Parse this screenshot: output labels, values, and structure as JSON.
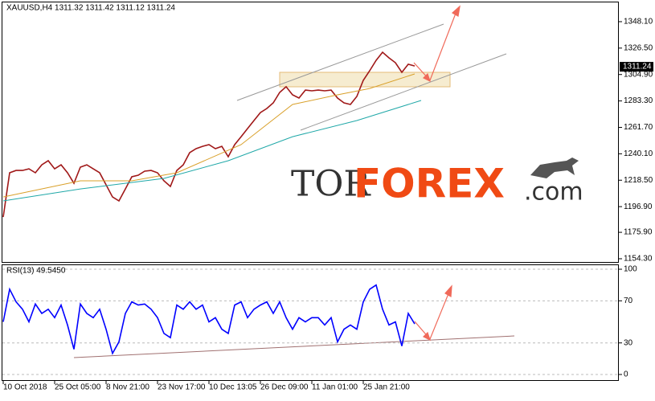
{
  "chart_data": [
    {
      "type": "line",
      "title": "XAUUSD,H4  1311.32 1311.42 1311.12 1311.24",
      "xlim": [
        -0.5,
        95.75
      ],
      "ylim": [
        1151.0,
        1364.5
      ],
      "yticks": [
        {
          "value": 1348.1,
          "label": "1348.10"
        },
        {
          "value": 1326.5,
          "label": "1326.50"
        },
        {
          "value": 1304.9,
          "label": "1304.90"
        },
        {
          "value": 1283.3,
          "label": "1283.30"
        },
        {
          "value": 1261.7,
          "label": "1261.70"
        },
        {
          "value": 1240.1,
          "label": "1240.10"
        },
        {
          "value": 1218.5,
          "label": "1218.50"
        },
        {
          "value": 1196.9,
          "label": "1196.90"
        },
        {
          "value": 1175.9,
          "label": "1175.90"
        },
        {
          "value": 1154.3,
          "label": "1154.30"
        }
      ],
      "last_price": 1311.24,
      "series": [
        {
          "color": "#a01818",
          "values": [
            1188.4,
            1224.6,
            1226.5,
            1226.5,
            1227.8,
            1224.6,
            1231.1,
            1234.4,
            1227.8,
            1231.1,
            1224.6,
            1216.0,
            1229.2,
            1231.1,
            1227.8,
            1224.6,
            1214.7,
            1204.8,
            1201.6,
            1211.4,
            1221.3,
            1222.6,
            1225.9,
            1226.5,
            1224.6,
            1218.0,
            1213.4,
            1226.5,
            1231.1,
            1241.0,
            1244.3,
            1246.2,
            1247.6,
            1244.3,
            1246.2,
            1237.7,
            1247.6,
            1254.1,
            1260.7,
            1267.3,
            1273.8,
            1277.1,
            1281.7,
            1290.3,
            1294.9,
            1288.3,
            1285.7,
            1292.2,
            1291.6,
            1292.2,
            1291.6,
            1292.2,
            1285.7,
            1281.7,
            1280.4,
            1287.0,
            1300.1,
            1308.0,
            1316.5,
            1323.1,
            1318.5,
            1314.6,
            1306.7,
            1313.3,
            1311.9
          ]
        },
        {
          "color": "#d9a02a",
          "x": [
            0,
            12,
            20,
            27,
            37,
            45,
            52,
            57,
            64
          ],
          "values": [
            1204.8,
            1218.0,
            1218.0,
            1224.6,
            1247.6,
            1280.4,
            1288.3,
            1293.5,
            1305.4
          ]
        },
        {
          "color": "#20a8a8",
          "x": [
            0,
            12,
            25,
            35,
            45,
            55,
            65
          ],
          "values": [
            1201.6,
            1211.4,
            1220.0,
            1234.4,
            1254.1,
            1267.3,
            1283.7
          ]
        }
      ]
    },
    {
      "type": "line",
      "title": "RSI(13) 49.5450",
      "xlim": [
        -0.5,
        95.75
      ],
      "ylim": [
        -6.1,
        104.6
      ],
      "yticks": [
        100,
        70,
        30,
        0
      ],
      "xticks": [
        {
          "value": 0,
          "label": "10 Oct 2018"
        },
        {
          "value": 8,
          "label": "25 Oct 05:00"
        },
        {
          "value": 16,
          "label": "8 Nov 21:00"
        },
        {
          "value": 24,
          "label": "23 Nov 17:00"
        },
        {
          "value": 32,
          "label": "10 Dec 13:05"
        },
        {
          "value": 40,
          "label": "26 Dec 09:00"
        },
        {
          "value": 48,
          "label": "11 Jan 01:00"
        },
        {
          "value": 56,
          "label": "25 Jan 21:00"
        }
      ],
      "series": [
        {
          "color": "#0000ff",
          "values": [
            50,
            81,
            69,
            62,
            50,
            67,
            58,
            62,
            54,
            66,
            47,
            24,
            67,
            58,
            54,
            62,
            43,
            20,
            31,
            58,
            69,
            66,
            67,
            62,
            54,
            39,
            35,
            66,
            62,
            69,
            62,
            66,
            50,
            54,
            43,
            39,
            66,
            69,
            54,
            62,
            66,
            69,
            58,
            69,
            54,
            43,
            54,
            50,
            54,
            54,
            47,
            54,
            31,
            43,
            47,
            43,
            69,
            81,
            85,
            62,
            47,
            50,
            27,
            58,
            48
          ]
        }
      ]
    }
  ],
  "watermark": {
    "prefix": "TOR",
    "main": "FOREX",
    "suffix": ".com"
  }
}
